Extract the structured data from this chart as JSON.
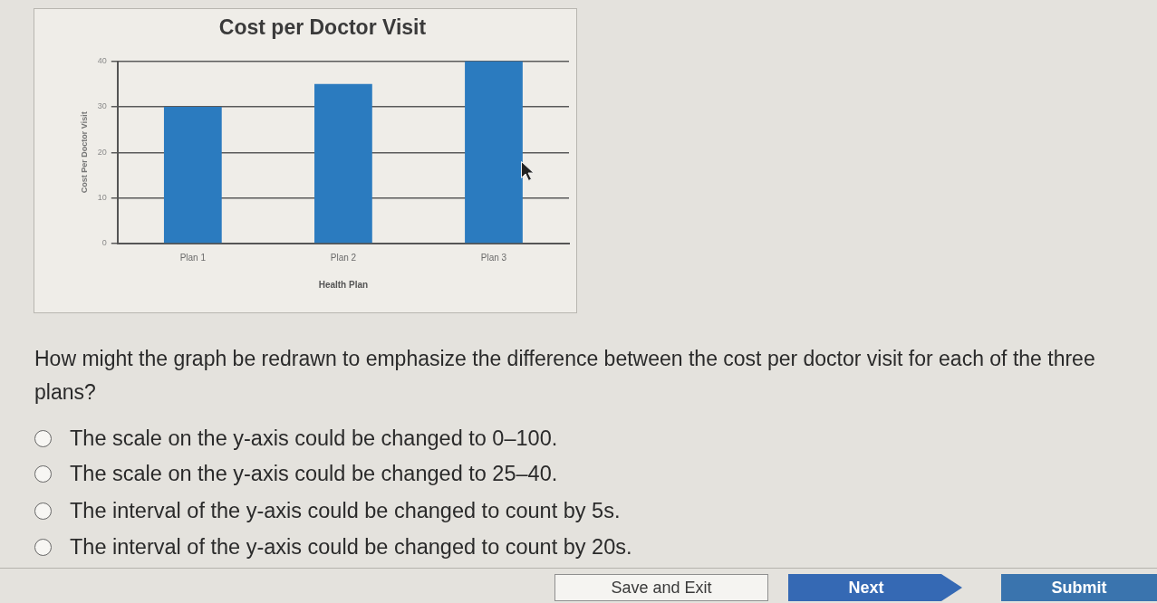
{
  "chart_data": {
    "type": "bar",
    "title": "Cost per Doctor Visit",
    "xlabel": "Health Plan",
    "ylabel": "Cost Per Doctor Visit",
    "categories": [
      "Plan 1",
      "Plan 2",
      "Plan 3"
    ],
    "values": [
      30,
      35,
      40
    ],
    "color": "#2b7bbf",
    "ylim": [
      0,
      40
    ],
    "yticks": [
      0,
      10,
      20,
      30,
      40
    ],
    "grid": "y",
    "annotations": [
      "How might the graph be redrawn to emphasize the difference between the cost per doctor visit for each of the three plans?",
      "The scale on the y-axis could be changed to 0–100.",
      "The scale on the y-axis could be changed to 25–40.",
      "The interval of the y-axis could be changed to count by 5s.",
      "The interval of the y-axis could be changed to count by 20s.",
      "Save and Exit",
      "Next",
      "Submit"
    ]
  }
}
